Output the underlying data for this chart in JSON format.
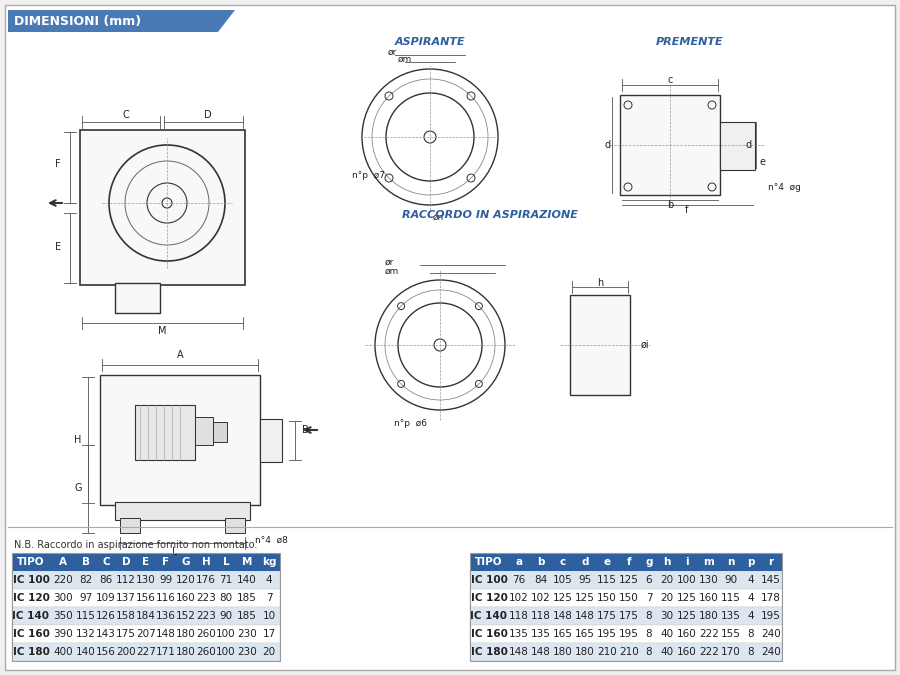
{
  "title": "DIMENSIONI (mm)",
  "title_bg": "#4a7ab5",
  "bg_color": "#f0f0f0",
  "panel_bg": "#ffffff",
  "header_bg": "#2e5f9e",
  "header_text": "#ffffff",
  "row_highlight": "#dce6f1",
  "row_normal": "#ffffff",
  "text_color": "#222222",
  "blue_label": "#2e5f9e",
  "table1_headers": [
    "TIPO",
    "A",
    "B",
    "C",
    "D",
    "E",
    "F",
    "G",
    "H",
    "L",
    "M",
    "kg"
  ],
  "table2_headers": [
    "TIPO",
    "a",
    "b",
    "c",
    "d",
    "e",
    "f",
    "g",
    "h",
    "i",
    "m",
    "n",
    "p",
    "r"
  ],
  "table1_rows": [
    [
      "IC 100",
      "220",
      "82",
      "86",
      "112",
      "130",
      "99",
      "120",
      "176",
      "71",
      "140",
      "4"
    ],
    [
      "IC 120",
      "300",
      "97",
      "109",
      "137",
      "156",
      "116",
      "160",
      "223",
      "80",
      "185",
      "7"
    ],
    [
      "IC 140",
      "350",
      "115",
      "126",
      "158",
      "184",
      "136",
      "152",
      "223",
      "90",
      "185",
      "10"
    ],
    [
      "IC 160",
      "390",
      "132",
      "143",
      "175",
      "207",
      "148",
      "180",
      "260",
      "100",
      "230",
      "17"
    ],
    [
      "IC 180",
      "400",
      "140",
      "156",
      "200",
      "227",
      "171",
      "180",
      "260",
      "100",
      "230",
      "20"
    ]
  ],
  "table2_rows": [
    [
      "IC 100",
      "76",
      "84",
      "105",
      "95",
      "115",
      "125",
      "6",
      "20",
      "100",
      "130",
      "90",
      "4",
      "145"
    ],
    [
      "IC 120",
      "102",
      "102",
      "125",
      "125",
      "150",
      "150",
      "7",
      "20",
      "125",
      "160",
      "115",
      "4",
      "178"
    ],
    [
      "IC 140",
      "118",
      "118",
      "148",
      "148",
      "175",
      "175",
      "8",
      "30",
      "125",
      "180",
      "135",
      "4",
      "195"
    ],
    [
      "IC 160",
      "135",
      "135",
      "165",
      "165",
      "195",
      "195",
      "8",
      "40",
      "160",
      "222",
      "155",
      "8",
      "240"
    ],
    [
      "IC 180",
      "148",
      "148",
      "180",
      "180",
      "210",
      "210",
      "8",
      "40",
      "160",
      "222",
      "170",
      "8",
      "240"
    ]
  ],
  "note": "N.B. Raccordo in aspirazione fornito non montato.",
  "section_aspirante": "ASPIRANTE",
  "section_premente": "PREMENTE",
  "section_raccordo": "RACCORDO IN ASPIRAZIONE"
}
